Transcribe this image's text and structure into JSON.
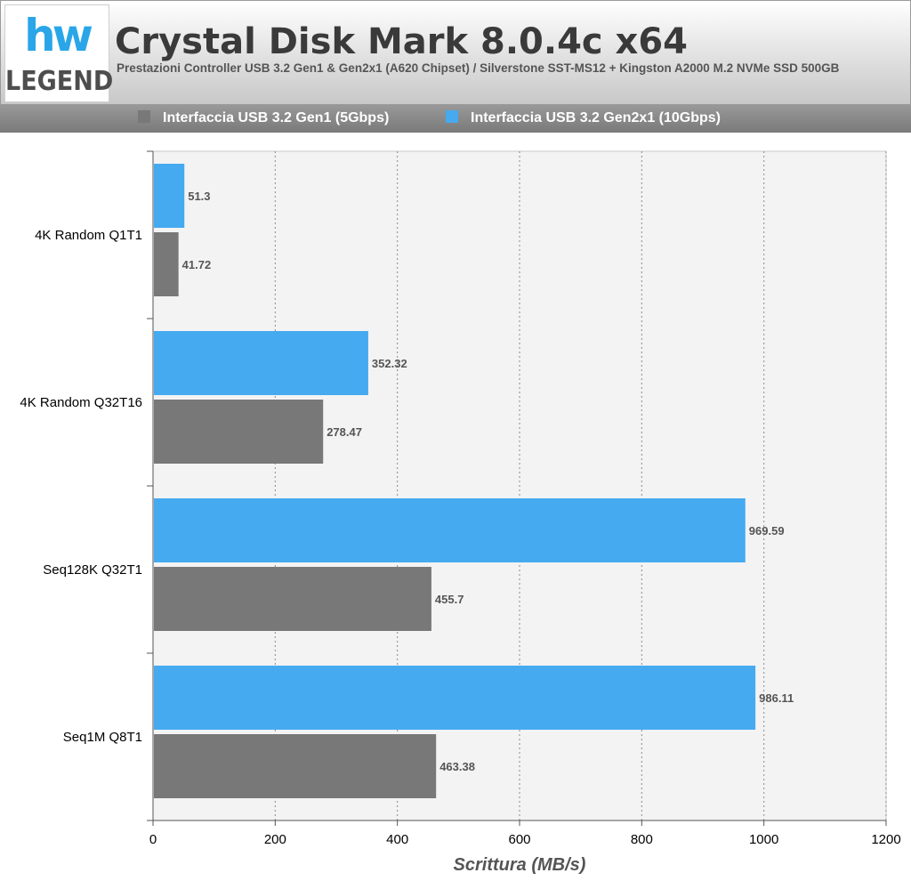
{
  "header": {
    "logo_top": "hw",
    "logo_bottom": "LEGEND",
    "title": "Crystal Disk Mark 8.0.4c x64",
    "subtitle": "Prestazioni Controller USB 3.2 Gen1 & Gen2x1 (A620 Chipset) / Silverstone SST-MS12 + Kingston A2000 M.2 NVMe SSD 500GB"
  },
  "colors": {
    "gen1": "#787878",
    "gen2": "#45aaf0",
    "plot_bg": "#f3f3f3",
    "grid": "#8a8a8a"
  },
  "chart_data": {
    "type": "bar",
    "orientation": "horizontal",
    "title": "Crystal Disk Mark 8.0.4c x64",
    "subtitle": "Prestazioni Controller USB 3.2 Gen1 & Gen2x1 (A620 Chipset) / Silverstone SST-MS12 + Kingston A2000 M.2 NVMe SSD 500GB",
    "xlabel": "Scrittura (MB/s)",
    "ylabel": "",
    "categories": [
      "4K Random Q1T1",
      "4K Random Q32T16",
      "Seq128K Q32T1",
      "Seq1M Q8T1"
    ],
    "series": [
      {
        "name": "Interfaccia USB 3.2 Gen1 (5Gbps)",
        "color": "#787878",
        "values": [
          41.72,
          278.47,
          455.7,
          463.38
        ],
        "labels": [
          "41.72",
          "278.47",
          "455.7",
          "463.38"
        ]
      },
      {
        "name": "Interfaccia USB 3.2 Gen2x1 (10Gbps)",
        "color": "#45aaf0",
        "values": [
          51.3,
          352.32,
          969.59,
          986.11
        ],
        "labels": [
          "51.3",
          "352.32",
          "969.59",
          "986.11"
        ]
      }
    ],
    "xlim": [
      0,
      1200
    ],
    "xticks": [
      0,
      200,
      400,
      600,
      800,
      1000,
      1200
    ],
    "xtick_labels": [
      "0",
      "200",
      "400",
      "600",
      "800",
      "1000",
      "1200"
    ],
    "grid": "vertical dotted",
    "legend_position": "top"
  }
}
